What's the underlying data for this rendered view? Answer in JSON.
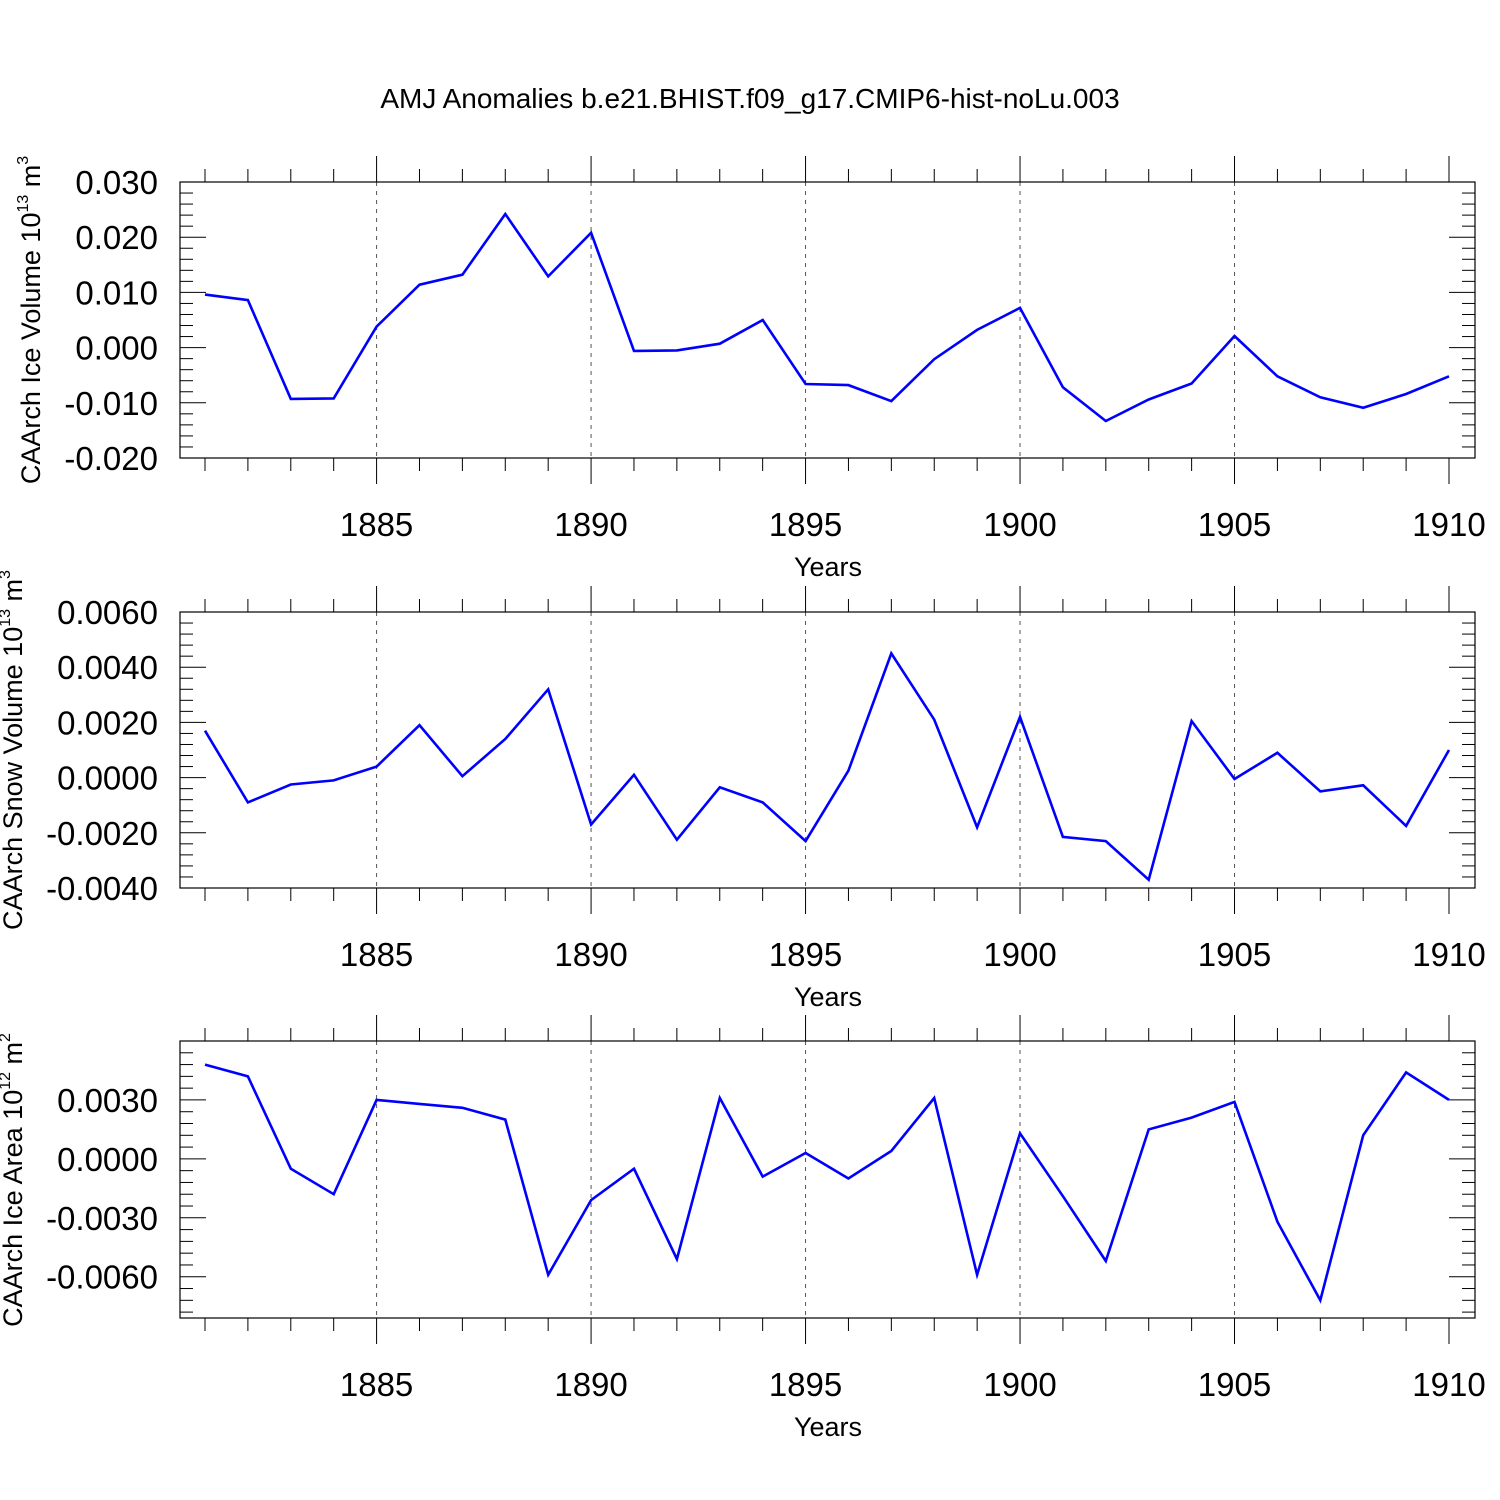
{
  "title": "AMJ Anomalies b.e21.BHIST.f09_g17.CMIP6-hist-noLu.003",
  "chart_data": [
    {
      "type": "line",
      "ylabel": {
        "main": "CAArch Ice Volume 10",
        "exp": "13",
        "unit": " m",
        "unit_exp": "3"
      },
      "xlabel": "Years",
      "xlim": [
        1881,
        1910
      ],
      "ylim": [
        -0.02,
        0.03
      ],
      "yticks": [
        -0.02,
        -0.01,
        0.0,
        0.01,
        0.02,
        0.03
      ],
      "ytick_labels": [
        "-0.020",
        "-0.010",
        "0.000",
        "0.010",
        "0.020",
        "0.030"
      ],
      "xticks": [
        1885,
        1890,
        1895,
        1900,
        1905,
        1910
      ],
      "xtick_labels": [
        "1885",
        "1890",
        "1895",
        "1900",
        "1905",
        "1910"
      ],
      "color": "#0000ff",
      "x": [
        1881,
        1882,
        1883,
        1884,
        1885,
        1886,
        1887,
        1888,
        1889,
        1890,
        1891,
        1892,
        1893,
        1894,
        1895,
        1896,
        1897,
        1898,
        1899,
        1900,
        1901,
        1902,
        1903,
        1904,
        1905,
        1906,
        1907,
        1908,
        1909,
        1910
      ],
      "values": [
        0.0096,
        0.0086,
        -0.0093,
        -0.0092,
        0.0038,
        0.0114,
        0.0132,
        0.0242,
        0.0129,
        0.0208,
        -0.0006,
        -0.0005,
        0.0007,
        0.005,
        -0.0066,
        -0.0068,
        -0.0097,
        -0.0021,
        0.0032,
        0.0072,
        -0.0072,
        -0.0133,
        -0.0094,
        -0.0065,
        0.0021,
        -0.0052,
        -0.009,
        -0.0109,
        -0.0084,
        -0.0052
      ]
    },
    {
      "type": "line",
      "ylabel": {
        "main": "CAArch Snow Volume 10",
        "exp": "13",
        "unit": " m",
        "unit_exp": "3"
      },
      "xlabel": "Years",
      "xlim": [
        1881,
        1910
      ],
      "ylim": [
        -0.004,
        0.006
      ],
      "yticks": [
        -0.004,
        -0.002,
        0.0,
        0.002,
        0.004,
        0.006
      ],
      "ytick_labels": [
        "-0.0040",
        "-0.0020",
        "0.0000",
        "0.0020",
        "0.0040",
        "0.0060"
      ],
      "xticks": [
        1885,
        1890,
        1895,
        1900,
        1905,
        1910
      ],
      "xtick_labels": [
        "1885",
        "1890",
        "1895",
        "1900",
        "1905",
        "1910"
      ],
      "color": "#0000ff",
      "x": [
        1881,
        1882,
        1883,
        1884,
        1885,
        1886,
        1887,
        1888,
        1889,
        1890,
        1891,
        1892,
        1893,
        1894,
        1895,
        1896,
        1897,
        1898,
        1899,
        1900,
        1901,
        1902,
        1903,
        1904,
        1905,
        1906,
        1907,
        1908,
        1909,
        1910
      ],
      "values": [
        0.0017,
        -0.0009,
        -0.00025,
        -0.0001,
        0.0004,
        0.0019,
        5e-05,
        0.0014,
        0.0032,
        -0.0017,
        0.0001,
        -0.00225,
        -0.00035,
        -0.0009,
        -0.0023,
        0.00025,
        0.0045,
        0.0021,
        -0.0018,
        0.0022,
        -0.00215,
        -0.0023,
        -0.0037,
        0.00205,
        -5e-05,
        0.0009,
        -0.0005,
        -0.00028,
        -0.00175,
        0.001
      ]
    },
    {
      "type": "line",
      "ylabel": {
        "main": "CAArch Ice Area 10",
        "exp": "12",
        "unit": " m",
        "unit_exp": "2"
      },
      "xlabel": "Years",
      "xlim": [
        1881,
        1910
      ],
      "ylim": [
        -0.0081,
        0.006
      ],
      "yticks": [
        -0.006,
        -0.003,
        0.0,
        0.003
      ],
      "ytick_labels": [
        "-0.0060",
        "-0.0030",
        "0.0000",
        "0.0030"
      ],
      "xticks": [
        1885,
        1890,
        1895,
        1900,
        1905,
        1910
      ],
      "xtick_labels": [
        "1885",
        "1890",
        "1895",
        "1900",
        "1905",
        "1910"
      ],
      "color": "#0000ff",
      "x": [
        1881,
        1882,
        1883,
        1884,
        1885,
        1886,
        1887,
        1888,
        1889,
        1890,
        1891,
        1892,
        1893,
        1894,
        1895,
        1896,
        1897,
        1898,
        1899,
        1900,
        1901,
        1902,
        1903,
        1904,
        1905,
        1906,
        1907,
        1908,
        1909,
        1910
      ],
      "values": [
        0.0048,
        0.0042,
        -0.0005,
        -0.0018,
        0.003,
        0.0028,
        0.0026,
        0.002,
        -0.0059,
        -0.0021,
        -0.0005,
        -0.0051,
        0.0031,
        -0.0009,
        0.0003,
        -0.001,
        0.0004,
        0.0031,
        -0.0059,
        0.0013,
        -0.0019,
        -0.0052,
        0.0015,
        0.0021,
        0.0029,
        -0.0032,
        -0.0072,
        0.0012,
        0.0044,
        0.003
      ]
    }
  ]
}
